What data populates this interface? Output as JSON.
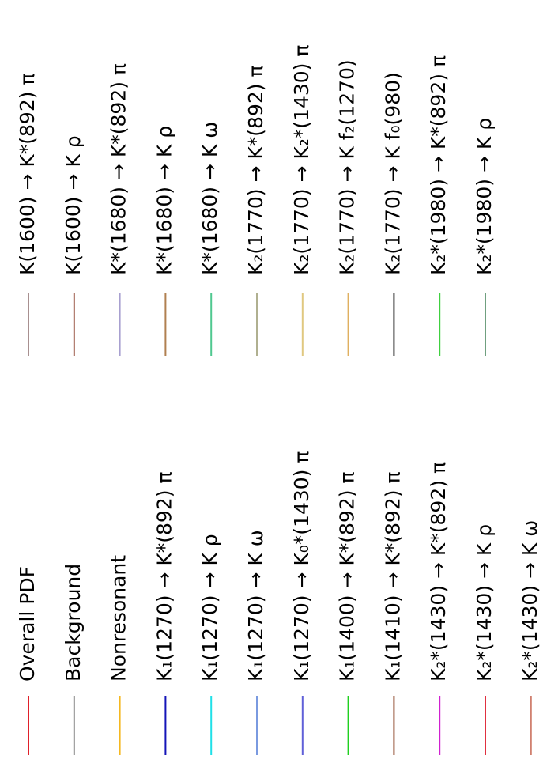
{
  "legend": {
    "columns": [
      {
        "entries": [
          {
            "label": "Overall PDF",
            "color": "#e0202a"
          },
          {
            "label": "Background",
            "color": "#8c8c8c"
          },
          {
            "label": "Nonresonant",
            "color": "#f5b820"
          },
          {
            "label": "K₁(1270) → K*(892) π",
            "color": "#1414b8"
          },
          {
            "label": "K₁(1270) → K ρ",
            "color": "#20e0e8"
          },
          {
            "label": "K₁(1270) → K ω",
            "color": "#7a9ae0"
          },
          {
            "label": "K₁(1270) → K₀*(1430) π",
            "color": "#6060d8"
          },
          {
            "label": "K₁(1400) → K*(892) π",
            "color": "#20d020"
          },
          {
            "label": "K₁(1410) → K*(892) π",
            "color": "#9a5a40"
          },
          {
            "label": "K₂*(1430) → K*(892) π",
            "color": "#d020d0"
          },
          {
            "label": "K₂*(1430) → K ρ",
            "color": "#e03040"
          },
          {
            "label": "K₂*(1430) → K ω",
            "color": "#d08070"
          }
        ]
      },
      {
        "entries": [
          {
            "label": "K(1600) → K*(892) π",
            "color": "#a89090"
          },
          {
            "label": "K(1600) → K ρ",
            "color": "#a06050"
          },
          {
            "label": "K*(1680) → K*(892) π",
            "color": "#a8a0d0"
          },
          {
            "label": "K*(1680) → K ρ",
            "color": "#b08050"
          },
          {
            "label": "K*(1680) → K ω",
            "color": "#50c890"
          },
          {
            "label": "K₂(1770) → K*(892) π",
            "color": "#b0b090"
          },
          {
            "label": "K₂(1770) → K₂*(1430) π",
            "color": "#e0c880"
          },
          {
            "label": "K₂(1770) → K f₂(1270)",
            "color": "#e0b060"
          },
          {
            "label": "K₂(1770) → K f₀(980)",
            "color": "#404040"
          },
          {
            "label": "K₂*(1980) → K*(892) π",
            "color": "#40d040"
          },
          {
            "label": "K₂*(1980) → K ρ",
            "color": "#70a080"
          }
        ]
      }
    ]
  }
}
